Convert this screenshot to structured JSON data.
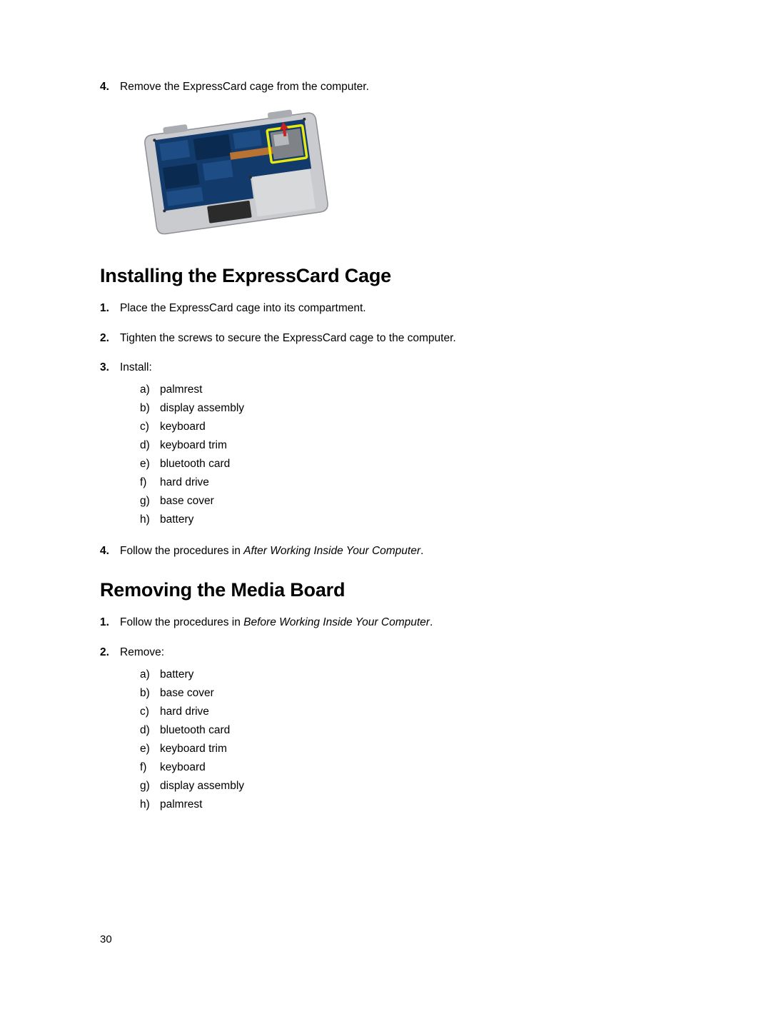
{
  "top_step": {
    "num": "4.",
    "text": "Remove the ExpressCard cage from the computer."
  },
  "figure": {
    "chassis_fill": "#c9cbce",
    "chassis_stroke": "#8d8f92",
    "board_fill": "#123a6b",
    "board_dark": "#0b2a4f",
    "board_mid": "#1e4d85",
    "highlight_stroke": "#e8e813",
    "pad_fill": "#d8d9db",
    "copper_fill": "#b87333",
    "slot_fill": "#2b2b2b",
    "arrow_red": "#c92020",
    "tab_fill": "#a9acb0"
  },
  "section1": {
    "heading": "Installing the ExpressCard Cage",
    "steps": [
      {
        "num": "1.",
        "text": "Place the ExpressCard cage into its compartment."
      },
      {
        "num": "2.",
        "text": "Tighten the screws to secure the ExpressCard cage to the computer."
      },
      {
        "num": "3.",
        "text": "Install:",
        "sub": [
          {
            "l": "a)",
            "t": "palmrest"
          },
          {
            "l": "b)",
            "t": "display assembly"
          },
          {
            "l": "c)",
            "t": "keyboard"
          },
          {
            "l": "d)",
            "t": "keyboard trim"
          },
          {
            "l": "e)",
            "t": "bluetooth card"
          },
          {
            "l": "f)",
            "t": "hard drive"
          },
          {
            "l": "g)",
            "t": "base cover"
          },
          {
            "l": "h)",
            "t": "battery"
          }
        ]
      },
      {
        "num": "4.",
        "text_pre": "Follow the procedures in ",
        "text_italic": "After Working Inside Your Computer",
        "text_post": "."
      }
    ]
  },
  "section2": {
    "heading": "Removing the Media Board",
    "steps": [
      {
        "num": "1.",
        "text_pre": "Follow the procedures in ",
        "text_italic": "Before Working Inside Your Computer",
        "text_post": "."
      },
      {
        "num": "2.",
        "text": "Remove:",
        "sub": [
          {
            "l": "a)",
            "t": "battery"
          },
          {
            "l": "b)",
            "t": "base cover"
          },
          {
            "l": "c)",
            "t": "hard drive"
          },
          {
            "l": "d)",
            "t": "bluetooth card"
          },
          {
            "l": "e)",
            "t": "keyboard trim"
          },
          {
            "l": "f)",
            "t": "keyboard"
          },
          {
            "l": "g)",
            "t": "display assembly"
          },
          {
            "l": "h)",
            "t": "palmrest"
          }
        ]
      }
    ]
  },
  "page_number": "30"
}
